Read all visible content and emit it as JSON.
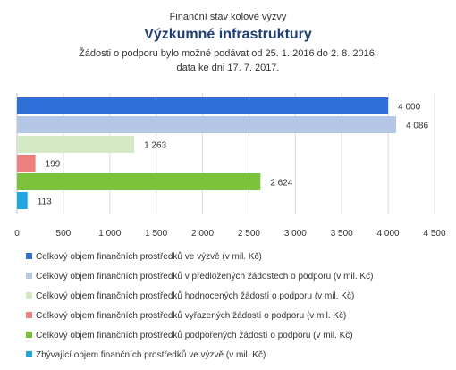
{
  "chart_data": {
    "type": "bar",
    "orientation": "horizontal",
    "title_line1": "Finanční stav kolové výzvy",
    "title": "Výzkumné infrastruktury",
    "subtitle_line1": "Žádosti o podporu bylo možné  podávat od 25. 1. 2016 do 2. 8. 2016;",
    "subtitle_line2": "data ke dni 17. 7. 2017.",
    "xlim": [
      0,
      4500
    ],
    "ticks": [
      0,
      500,
      1000,
      1500,
      2000,
      2500,
      3000,
      3500,
      4000,
      4500
    ],
    "tick_labels": [
      "0",
      "500",
      "1 000",
      "1 500",
      "2 000",
      "2 500",
      "3 000",
      "3 500",
      "4 000",
      "4 500"
    ],
    "grid": true,
    "legend_position": "bottom",
    "series": [
      {
        "name": "Celkový objem finančních prostředků ve výzvě (v mil. Kč)",
        "value": 4000,
        "label": "4 000",
        "color": "#2e6fd8"
      },
      {
        "name": "Celkový objem finančních prostředků v předložených žádostech o podporu (v mil. Kč)",
        "value": 4086,
        "label": "4 086",
        "color": "#b4c7e7"
      },
      {
        "name": "Celkový objem finančních prostředků hodnocených žádostí o podporu (v mil. Kč)",
        "value": 1263,
        "label": "1 263",
        "color": "#d5e8c4"
      },
      {
        "name": "Celkový objem finančních prostředků vyřazených žádostí o podporu (v mil. Kč)",
        "value": 199,
        "label": "199",
        "color": "#f08080"
      },
      {
        "name": "Celkový objem finančních prostředků podpořených žádostí o podporu (v mil. Kč)",
        "value": 2624,
        "label": "2 624",
        "color": "#7cc13a"
      },
      {
        "name": "Zbývající objem finančních prostředků ve výzvě (v mil. Kč)",
        "value": 113,
        "label": "113",
        "color": "#1fa8df"
      }
    ]
  }
}
